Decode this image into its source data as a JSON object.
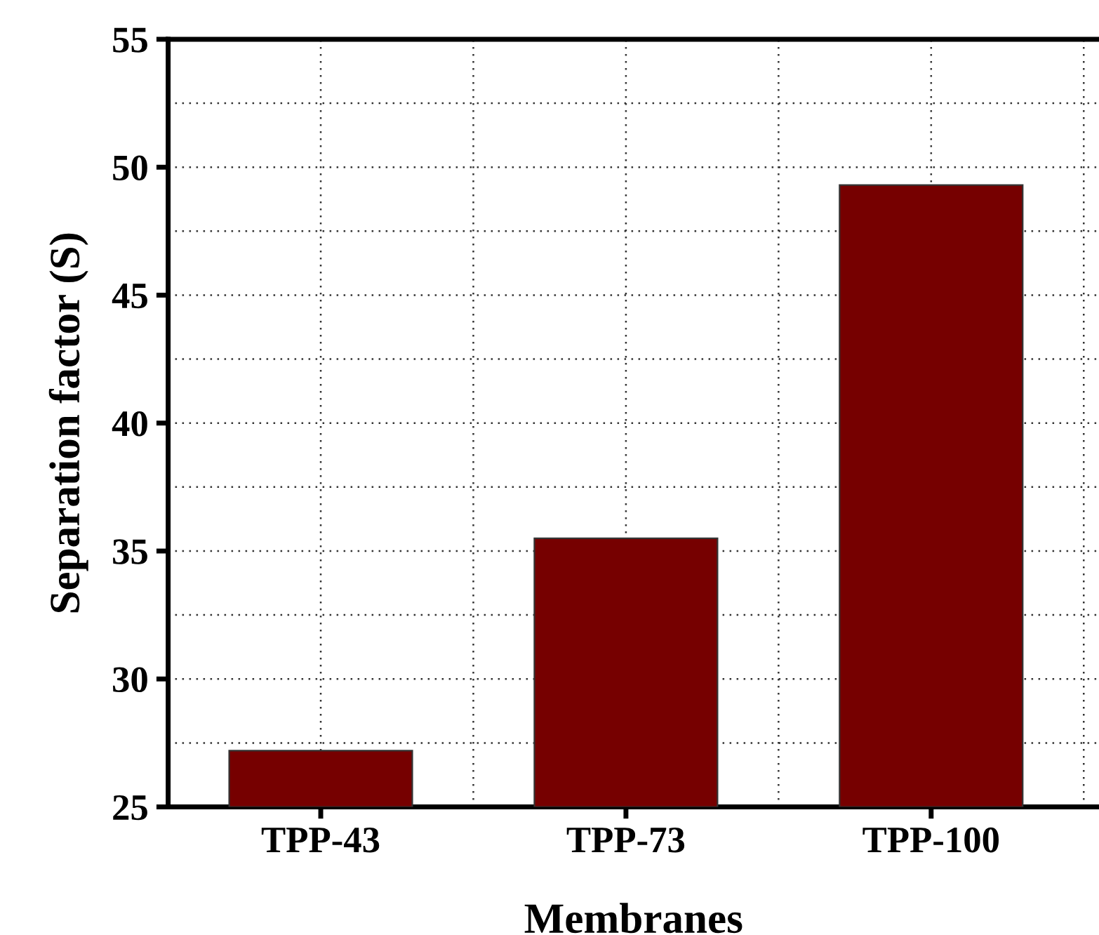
{
  "chart_data": {
    "type": "bar",
    "xlabel": "Membranes",
    "ylabel": "Separation factor (S)",
    "categories": [
      "TPP-43",
      "TPP-73",
      "TPP-100"
    ],
    "values": [
      27.2,
      35.5,
      49.3
    ],
    "color": "#760000",
    "ylim": [
      25,
      55
    ],
    "yticks": [
      25,
      30,
      35,
      40,
      45,
      50,
      55
    ],
    "grid": true
  }
}
